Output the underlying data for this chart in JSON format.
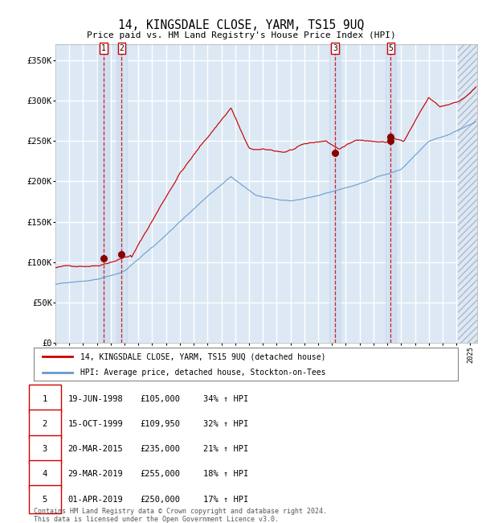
{
  "title": "14, KINGSDALE CLOSE, YARM, TS15 9UQ",
  "subtitle": "Price paid vs. HM Land Registry's House Price Index (HPI)",
  "ylim": [
    0,
    370000
  ],
  "yticks": [
    0,
    50000,
    100000,
    150000,
    200000,
    250000,
    300000,
    350000
  ],
  "ytick_labels": [
    "£0",
    "£50K",
    "£100K",
    "£150K",
    "£200K",
    "£250K",
    "£300K",
    "£350K"
  ],
  "bg_color": "#dce9f5",
  "grid_color": "#ffffff",
  "red_line_color": "#cc0000",
  "blue_line_color": "#6699cc",
  "legend_label_red": "14, KINGSDALE CLOSE, YARM, TS15 9UQ (detached house)",
  "legend_label_blue": "HPI: Average price, detached house, Stockton-on-Tees",
  "note1": "Contains HM Land Registry data © Crown copyright and database right 2024.",
  "note2": "This data is licensed under the Open Government Licence v3.0.",
  "sale_date_floats": [
    1998.47,
    1999.79,
    2015.22,
    2019.25,
    2019.25
  ],
  "sale_prices": [
    105000,
    109950,
    235000,
    255000,
    250000
  ],
  "vline_x": [
    1998.47,
    1999.79,
    2015.22,
    2019.25
  ],
  "vline_labels": [
    "1",
    "2",
    "3",
    "5"
  ],
  "table_rows": [
    [
      "1",
      "19-JUN-1998",
      "£105,000",
      "34% ↑ HPI"
    ],
    [
      "2",
      "15-OCT-1999",
      "£109,950",
      "32% ↑ HPI"
    ],
    [
      "3",
      "20-MAR-2015",
      "£235,000",
      "21% ↑ HPI"
    ],
    [
      "4",
      "29-MAR-2019",
      "£255,000",
      "18% ↑ HPI"
    ],
    [
      "5",
      "01-APR-2019",
      "£250,000",
      "17% ↑ HPI"
    ]
  ]
}
